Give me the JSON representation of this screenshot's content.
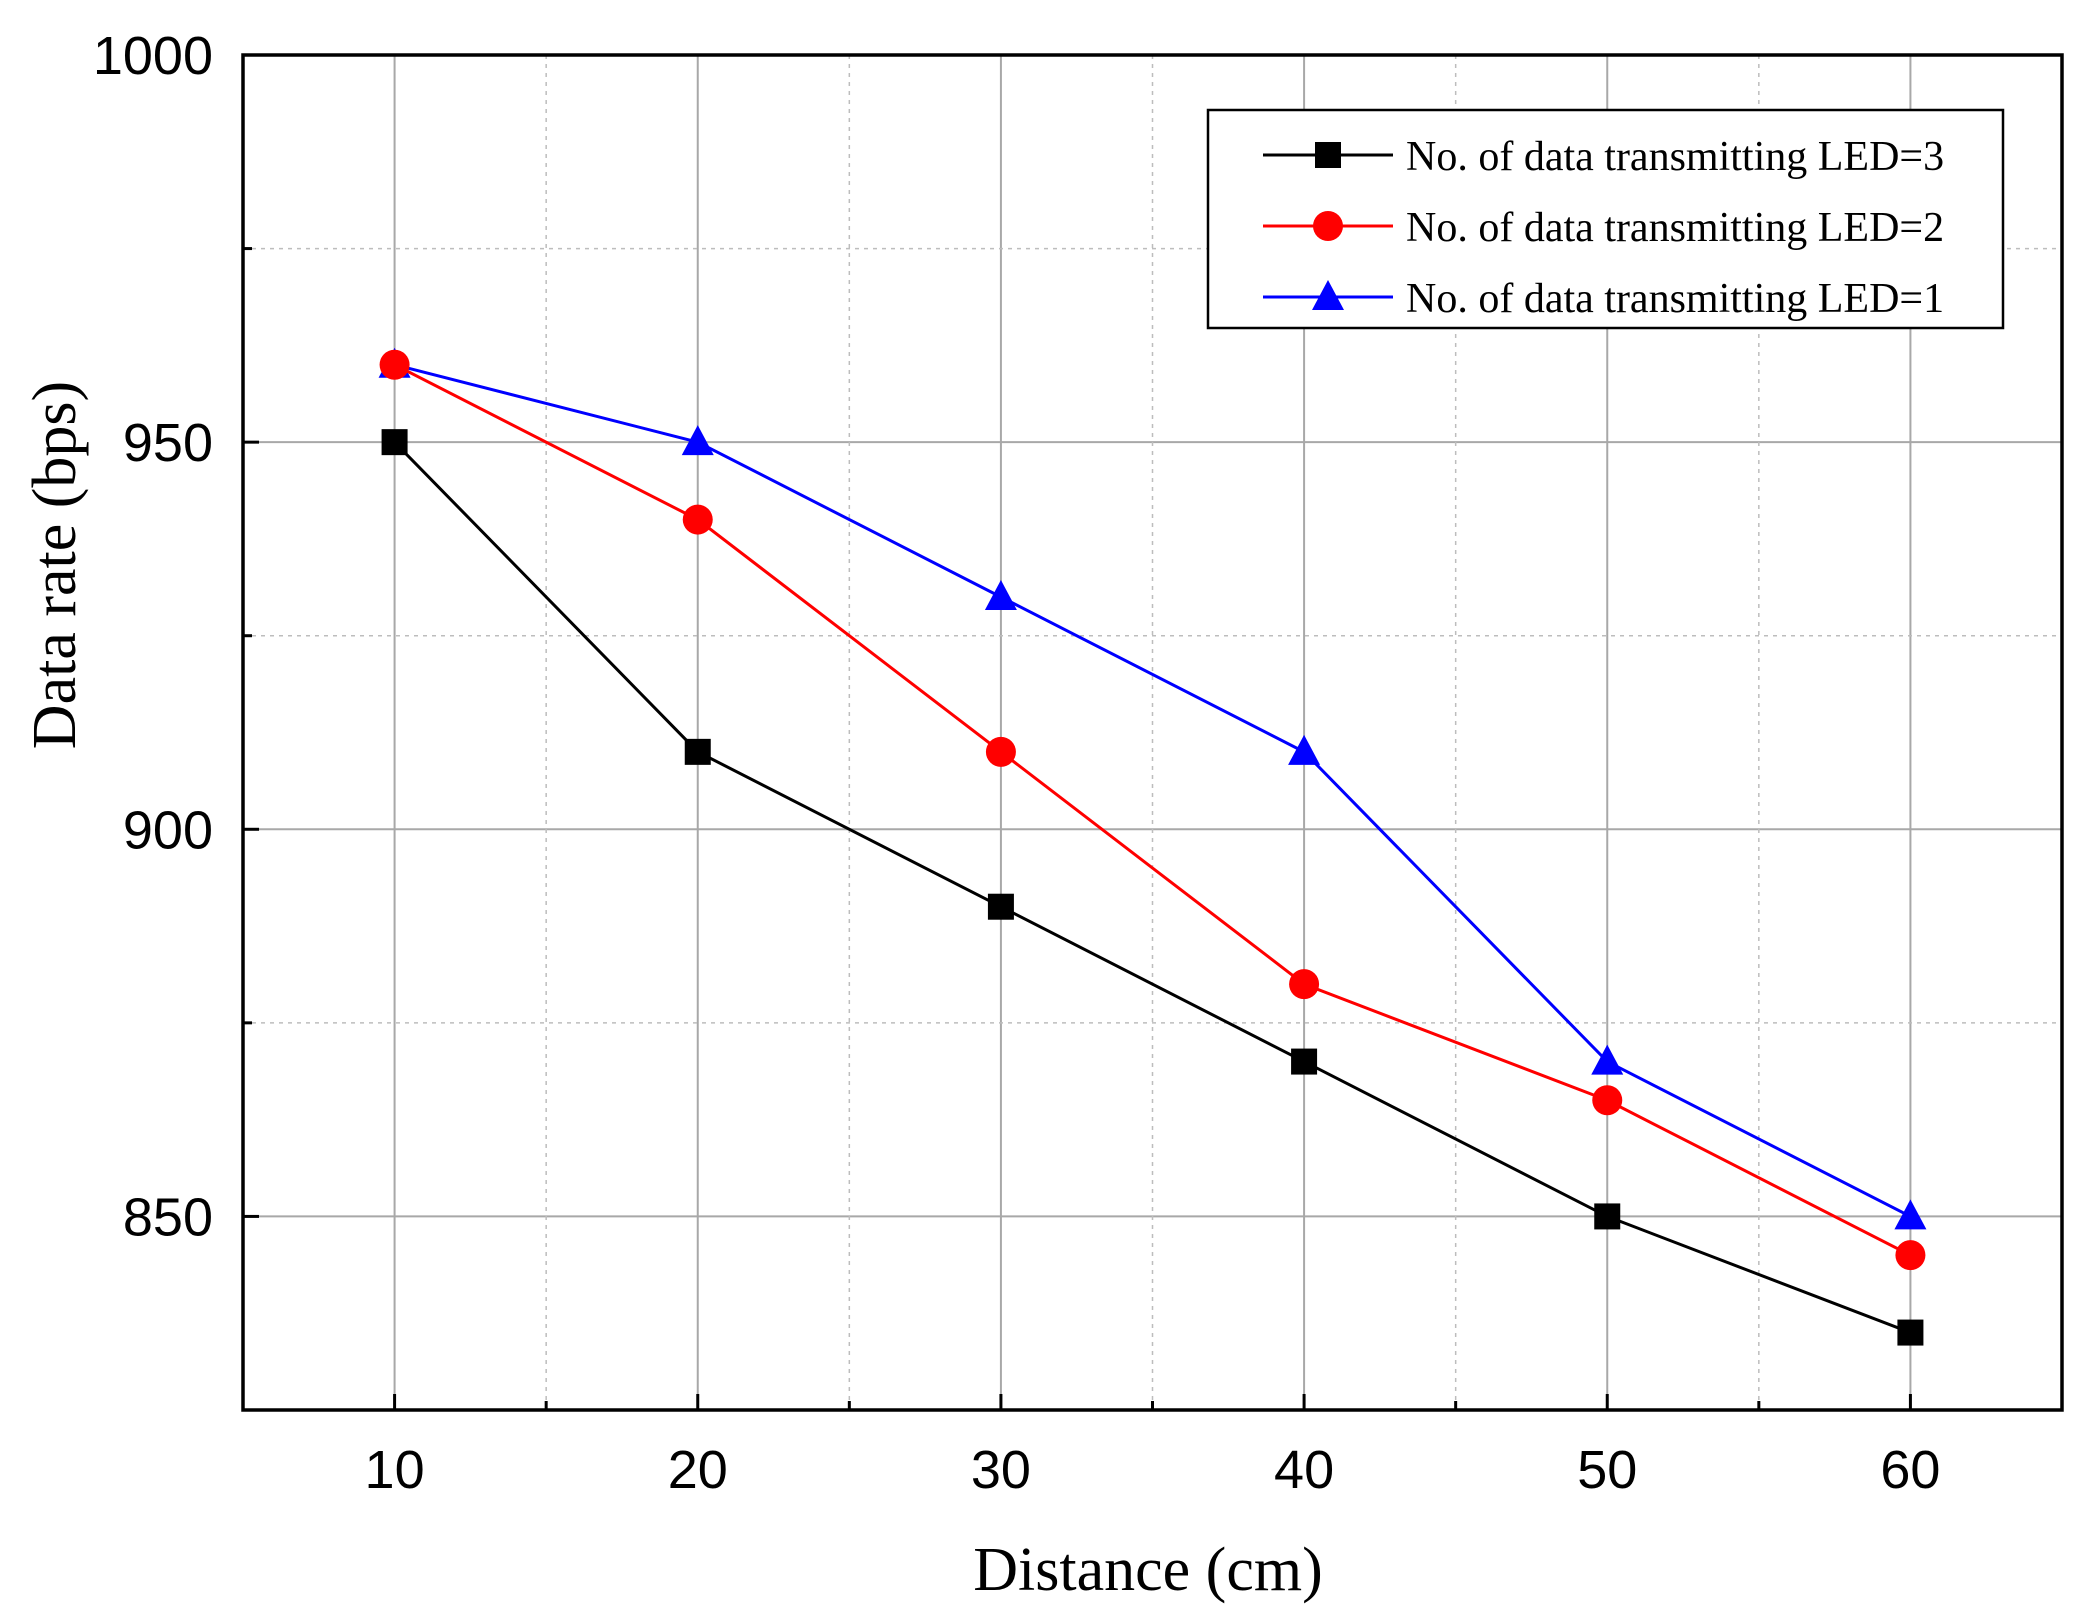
{
  "chart_data": {
    "type": "line",
    "title": "",
    "xlabel": "Distance (cm)",
    "ylabel": "Data rate (bps)",
    "xlim": [
      5,
      65
    ],
    "ylim": [
      825,
      1000
    ],
    "x_ticks": [
      10,
      20,
      30,
      40,
      50,
      60
    ],
    "y_ticks": [
      850,
      900,
      950,
      1000
    ],
    "x_minor_ticks": [
      15,
      25,
      35,
      45,
      55
    ],
    "y_minor_ticks": [
      825,
      875,
      925,
      975
    ],
    "grid": true,
    "legend_position": "top-right",
    "x": [
      10,
      20,
      30,
      40,
      50,
      60
    ],
    "series": [
      {
        "name": "No. of data transmitting LED=3",
        "values": [
          950,
          910,
          890,
          870,
          850,
          835
        ],
        "color": "#000000",
        "marker": "square"
      },
      {
        "name": "No. of data transmitting LED=2",
        "values": [
          960,
          940,
          910,
          880,
          865,
          845
        ],
        "color": "#ff0000",
        "marker": "circle"
      },
      {
        "name": "No. of data transmitting LED=1",
        "values": [
          960,
          950,
          930,
          910,
          870,
          850
        ],
        "color": "#0000ff",
        "marker": "triangle"
      }
    ]
  }
}
